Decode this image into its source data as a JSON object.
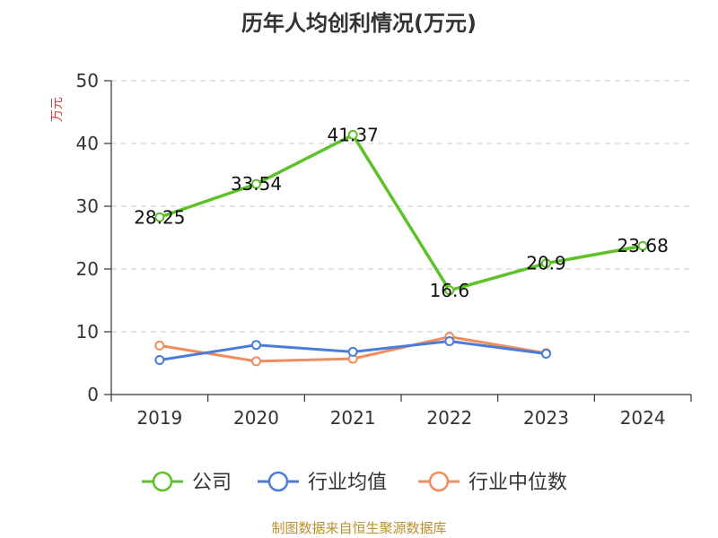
{
  "colors": {
    "company": "#5cc227",
    "industry_avg": "#4c7bd9",
    "industry_median": "#f18d5c",
    "grid": "#c8c8c8",
    "axis": "#333333",
    "ylabel": "#e03a3a",
    "source": "#b8902f"
  },
  "chart_data": {
    "type": "line",
    "title": "历年人均创利情况(万元)",
    "ylabel": "万元",
    "xlabel": "",
    "categories": [
      "2019",
      "2020",
      "2021",
      "2022",
      "2023",
      "2024"
    ],
    "ylim": [
      0,
      50
    ],
    "yticks": [
      0,
      10,
      20,
      30,
      40,
      50
    ],
    "grid": true,
    "legend_position": "bottom",
    "series": [
      {
        "name": "公司",
        "color_key": "company",
        "values": [
          28.25,
          33.54,
          41.37,
          16.6,
          20.9,
          23.68
        ],
        "labels": [
          "28.25",
          "33.54",
          "41.37",
          "16.6",
          "20.9",
          "23.68"
        ]
      },
      {
        "name": "行业均值",
        "color_key": "industry_avg",
        "values": [
          5.5,
          7.9,
          6.8,
          8.5,
          6.5,
          null
        ]
      },
      {
        "name": "行业中位数",
        "color_key": "industry_median",
        "values": [
          7.8,
          5.3,
          5.7,
          9.2,
          6.6,
          null
        ]
      }
    ]
  },
  "footer": {
    "source": "制图数据来自恒生聚源数据库"
  }
}
